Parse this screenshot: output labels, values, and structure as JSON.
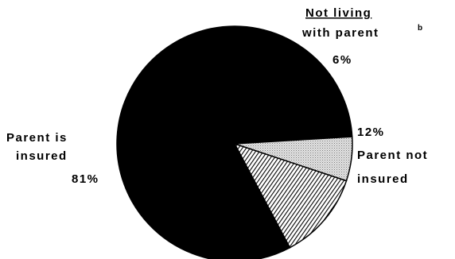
{
  "chart_data": {
    "type": "pie",
    "slices": [
      {
        "label_lines": [
          "Parent is",
          "insured"
        ],
        "value_label": "81%",
        "value": 81,
        "color": "#000000",
        "pattern": "solid"
      },
      {
        "label_lines": [
          "Not living",
          "with parent"
        ],
        "superscript": "b",
        "value_label": "6%",
        "value": 6,
        "color": "#d8d8d8",
        "pattern": "stipple"
      },
      {
        "label_lines": [
          "Parent not",
          "insured"
        ],
        "value_label": "12%",
        "value": 12,
        "color": "#000000",
        "pattern": "hatch"
      }
    ],
    "title": "",
    "legend": "none"
  }
}
